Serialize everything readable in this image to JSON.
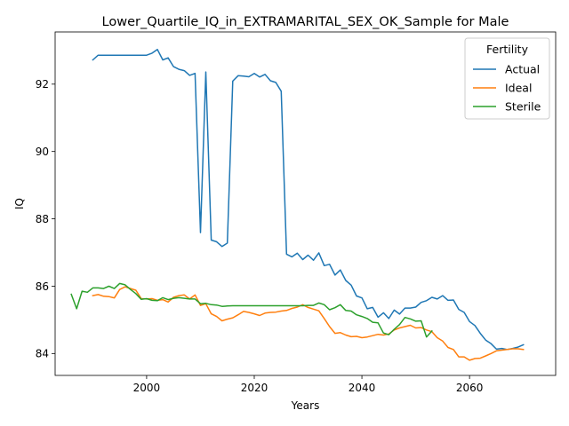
{
  "chart_data": {
    "type": "line",
    "title": "Lower_Quartile_IQ_in_EXTRAMARITAL_SEX_OK_Sample for Male",
    "xlabel": "Years",
    "ylabel": "IQ",
    "xlim": [
      1983,
      2076
    ],
    "ylim": [
      83.35,
      93.55
    ],
    "xticks": [
      2000,
      2020,
      2040,
      2060
    ],
    "yticks": [
      84,
      86,
      88,
      90,
      92
    ],
    "grid": false,
    "legend": {
      "title": "Fertility",
      "placement": "top-right"
    },
    "series": [
      {
        "name": "Actual",
        "color": "#1f77b4",
        "x": [
          1990,
          1991,
          1992,
          1993,
          1994,
          1995,
          1996,
          1997,
          1998,
          1999,
          2000,
          2001,
          2002,
          2003,
          2004,
          2005,
          2006,
          2007,
          2008,
          2009,
          2010,
          2011,
          2012,
          2013,
          2014,
          2015,
          2016,
          2017,
          2018,
          2019,
          2020,
          2021,
          2022,
          2023,
          2024,
          2025,
          2026,
          2027,
          2028,
          2029,
          2030,
          2031,
          2032,
          2033,
          2034,
          2035,
          2036,
          2037,
          2038,
          2039,
          2040,
          2041,
          2042,
          2043,
          2044,
          2045,
          2046,
          2047,
          2048,
          2049,
          2050,
          2051,
          2052,
          2053,
          2054,
          2055,
          2056,
          2057,
          2058,
          2059,
          2060,
          2061,
          2062,
          2063,
          2064,
          2065,
          2066,
          2067,
          2068,
          2069,
          2070
        ],
        "y": [
          92.72,
          92.86,
          92.86,
          92.86,
          92.86,
          92.86,
          92.86,
          92.86,
          92.86,
          92.86,
          92.86,
          92.92,
          93.03,
          92.72,
          92.78,
          92.52,
          92.44,
          92.4,
          92.26,
          92.32,
          87.59,
          92.36,
          87.37,
          87.32,
          87.18,
          87.28,
          92.09,
          92.25,
          92.24,
          92.22,
          92.32,
          92.21,
          92.29,
          92.1,
          92.05,
          91.79,
          86.95,
          86.87,
          86.98,
          86.79,
          86.92,
          86.77,
          86.99,
          86.61,
          86.65,
          86.33,
          86.48,
          86.17,
          86.03,
          85.71,
          85.65,
          85.33,
          85.37,
          85.08,
          85.21,
          85.04,
          85.29,
          85.17,
          85.35,
          85.35,
          85.38,
          85.52,
          85.57,
          85.67,
          85.62,
          85.72,
          85.58,
          85.59,
          85.31,
          85.22,
          84.95,
          84.83,
          84.6,
          84.4,
          84.29,
          84.13,
          84.15,
          84.12,
          84.15,
          84.19,
          84.26
        ]
      },
      {
        "name": "Ideal",
        "color": "#ff7f0e",
        "x": [
          1990,
          1991,
          1992,
          1993,
          1994,
          1995,
          1996,
          1997,
          1998,
          1999,
          2000,
          2001,
          2002,
          2003,
          2004,
          2005,
          2006,
          2007,
          2008,
          2009,
          2010,
          2011,
          2012,
          2013,
          2014,
          2015,
          2016,
          2017,
          2018,
          2019,
          2020,
          2021,
          2022,
          2023,
          2024,
          2025,
          2026,
          2027,
          2028,
          2029,
          2030,
          2031,
          2032,
          2033,
          2034,
          2035,
          2036,
          2037,
          2038,
          2039,
          2040,
          2041,
          2042,
          2043,
          2044,
          2045,
          2046,
          2047,
          2048,
          2049,
          2050,
          2051,
          2052,
          2053,
          2054,
          2055,
          2056,
          2057,
          2058,
          2059,
          2060,
          2061,
          2062,
          2063,
          2064,
          2065,
          2066,
          2067,
          2068,
          2069,
          2070
        ],
        "y": [
          85.72,
          85.75,
          85.7,
          85.69,
          85.65,
          85.9,
          85.98,
          85.93,
          85.88,
          85.63,
          85.62,
          85.63,
          85.58,
          85.6,
          85.53,
          85.67,
          85.72,
          85.74,
          85.62,
          85.74,
          85.43,
          85.48,
          85.18,
          85.1,
          84.97,
          85.02,
          85.06,
          85.15,
          85.25,
          85.22,
          85.18,
          85.13,
          85.2,
          85.22,
          85.23,
          85.26,
          85.28,
          85.34,
          85.38,
          85.45,
          85.37,
          85.32,
          85.27,
          85.04,
          84.8,
          84.6,
          84.62,
          84.55,
          84.5,
          84.51,
          84.47,
          84.49,
          84.53,
          84.57,
          84.55,
          84.58,
          84.7,
          84.76,
          84.8,
          84.84,
          84.76,
          84.77,
          84.7,
          84.65,
          84.47,
          84.37,
          84.18,
          84.12,
          83.9,
          83.9,
          83.8,
          83.85,
          83.86,
          83.93,
          84.0,
          84.08,
          84.1,
          84.12,
          84.14,
          84.14,
          84.12
        ]
      },
      {
        "name": "Sterile",
        "color": "#2ca02c",
        "x": [
          1986,
          1987,
          1988,
          1989,
          1990,
          1991,
          1992,
          1993,
          1994,
          1995,
          1996,
          1997,
          1998,
          1999,
          2000,
          2001,
          2002,
          2003,
          2004,
          2005,
          2006,
          2007,
          2008,
          2009,
          2010,
          2011,
          2012,
          2013,
          2014,
          2015,
          2016,
          2017,
          2018,
          2019,
          2020,
          2021,
          2022,
          2023,
          2024,
          2025,
          2026,
          2027,
          2028,
          2029,
          2030,
          2031,
          2032,
          2033,
          2034,
          2035,
          2036,
          2037,
          2038,
          2039,
          2040,
          2041,
          2042,
          2043,
          2044,
          2045,
          2046,
          2047,
          2048,
          2049,
          2050,
          2051,
          2052,
          2053
        ],
        "y": [
          85.76,
          85.33,
          85.85,
          85.82,
          85.95,
          85.95,
          85.93,
          86.0,
          85.93,
          86.08,
          86.04,
          85.9,
          85.78,
          85.61,
          85.63,
          85.58,
          85.57,
          85.66,
          85.6,
          85.64,
          85.66,
          85.64,
          85.62,
          85.62,
          85.48,
          85.49,
          85.45,
          85.44,
          85.4,
          85.41,
          85.42,
          85.42,
          85.42,
          85.42,
          85.42,
          85.42,
          85.42,
          85.42,
          85.42,
          85.42,
          85.42,
          85.42,
          85.42,
          85.42,
          85.43,
          85.43,
          85.5,
          85.45,
          85.3,
          85.36,
          85.45,
          85.28,
          85.26,
          85.15,
          85.1,
          85.04,
          84.93,
          84.91,
          84.61,
          84.56,
          84.72,
          84.86,
          85.07,
          85.03,
          84.96,
          84.97,
          84.49,
          84.67
        ]
      }
    ]
  }
}
